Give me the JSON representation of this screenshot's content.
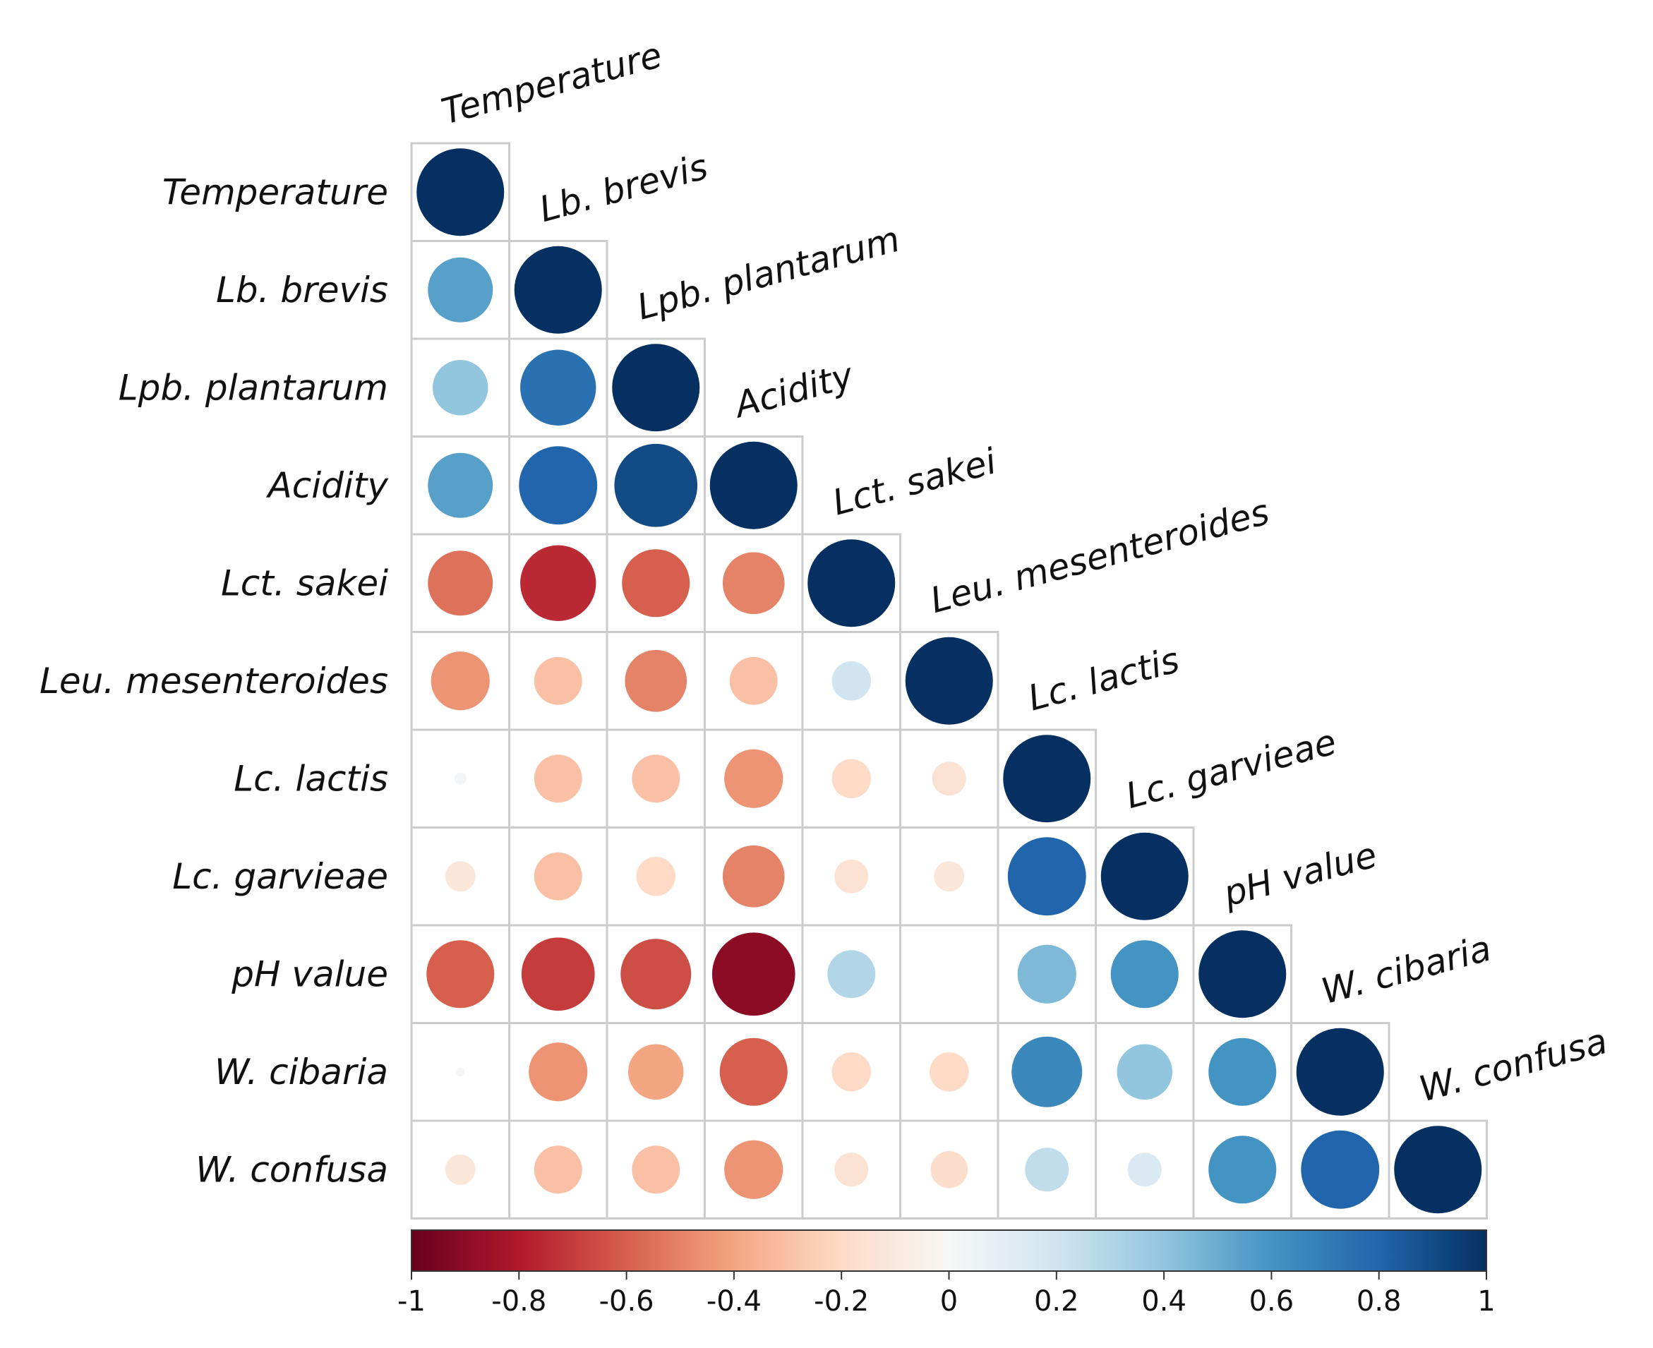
{
  "chart_data": {
    "type": "heatmap",
    "style": "lower-triangle correlation matrix with circles",
    "variables": [
      "Temperature",
      "Lb. brevis",
      "Lpb. plantarum",
      "Acidity",
      "Lct. sakei",
      "Leu. mesenteroides",
      "Lc. lactis",
      "Lc. garvieae",
      "pH value",
      "W. cibaria",
      "W. confusa"
    ],
    "matrix": [
      [
        1.0
      ],
      [
        0.55,
        1.0
      ],
      [
        0.4,
        0.75,
        1.0
      ],
      [
        0.55,
        0.8,
        0.9,
        1.0
      ],
      [
        -0.55,
        -0.75,
        -0.6,
        -0.5,
        1.0
      ],
      [
        -0.45,
        -0.3,
        -0.5,
        -0.3,
        0.2,
        1.0
      ],
      [
        0.02,
        -0.3,
        -0.3,
        -0.45,
        -0.2,
        -0.15,
        1.0
      ],
      [
        -0.12,
        -0.3,
        -0.2,
        -0.5,
        -0.15,
        -0.12,
        0.8,
        1.0
      ],
      [
        -0.6,
        -0.7,
        -0.65,
        -0.9,
        0.3,
        0.0,
        0.45,
        0.6,
        1.0
      ],
      [
        -0.01,
        -0.45,
        -0.4,
        -0.6,
        -0.2,
        -0.2,
        0.65,
        0.4,
        0.6,
        1.0
      ],
      [
        -0.12,
        -0.3,
        -0.3,
        -0.45,
        -0.15,
        -0.18,
        0.25,
        0.15,
        0.6,
        0.8,
        1.0
      ]
    ],
    "colorbar": {
      "min": -1,
      "max": 1,
      "ticks": [
        "-1",
        "-0.8",
        "-0.6",
        "-0.4",
        "-0.2",
        "0",
        "0.2",
        "0.4",
        "0.6",
        "0.8",
        "1"
      ]
    },
    "colors": {
      "stops": [
        "#67001f",
        "#b2182b",
        "#d6604d",
        "#f4a582",
        "#fddbc7",
        "#f7f7f7",
        "#d1e5f0",
        "#92c5de",
        "#4393c3",
        "#2166ac",
        "#053061"
      ],
      "cell_border": "#cccccc"
    }
  }
}
